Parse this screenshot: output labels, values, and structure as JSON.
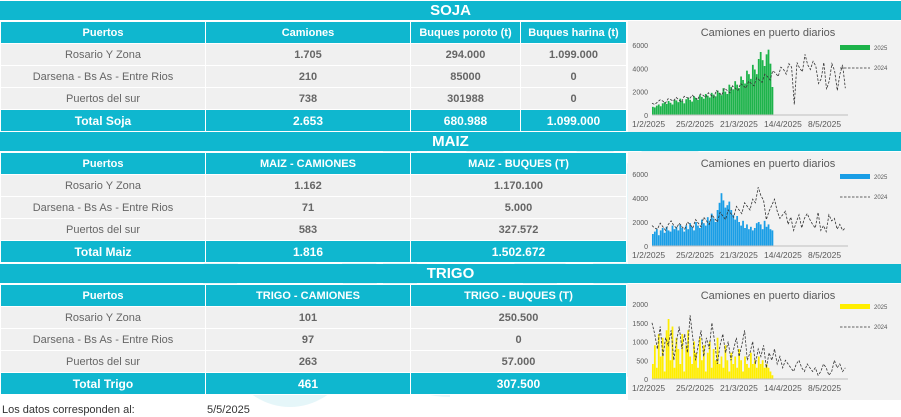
{
  "soja": {
    "title": "SOJA",
    "headers": [
      "Puertos",
      "Camiones",
      "Buques poroto (t)",
      "Buques harina (t)"
    ],
    "rows": [
      [
        "Rosario Y Zona",
        "1.705",
        "294.000",
        "1.099.000"
      ],
      [
        "Darsena - Bs As - Entre Rios",
        "210",
        "85000",
        "0"
      ],
      [
        "Puertos del sur",
        "738",
        "301988",
        "0"
      ]
    ],
    "total": [
      "Total Soja",
      "2.653",
      "680.988",
      "1.099.000"
    ]
  },
  "maiz": {
    "title": "MAIZ",
    "headers": [
      "Puertos",
      "MAIZ - CAMIONES",
      "MAIZ - BUQUES (T)"
    ],
    "rows": [
      [
        "Rosario Y Zona",
        "1.162",
        "1.170.100"
      ],
      [
        "Darsena - Bs As - Entre Rios",
        "71",
        "5.000"
      ],
      [
        "Puertos del sur",
        "583",
        "327.572"
      ]
    ],
    "total": [
      "Total Maiz",
      "1.816",
      "1.502.672"
    ]
  },
  "trigo": {
    "title": "TRIGO",
    "headers": [
      "Puertos",
      "TRIGO - CAMIONES",
      "TRIGO - BUQUES (T)"
    ],
    "rows": [
      [
        "Rosario Y Zona",
        "101",
        "250.500"
      ],
      [
        "Darsena - Bs As - Entre Rios",
        "97",
        "0"
      ],
      [
        "Puertos del sur",
        "263",
        "57.000"
      ]
    ],
    "total": [
      "Total Trigo",
      "461",
      "307.500"
    ]
  },
  "footer": {
    "label": "Los datos corresponden al:",
    "date": "5/5/2025"
  },
  "chart_data": [
    {
      "type": "bar",
      "title": "Camiones en puerto diarios",
      "color": "#1db34a",
      "ylim": [
        0,
        6000
      ],
      "yticks": [
        0,
        2000,
        4000,
        6000
      ],
      "xticks": [
        "1/2/2025",
        "25/2/2025",
        "21/3/2025",
        "14/4/2025",
        "8/5/2025"
      ],
      "series": [
        {
          "name": "2025",
          "values": [
            700,
            650,
            800,
            900,
            750,
            1000,
            1100,
            950,
            1200,
            1050,
            900,
            1300,
            1250,
            1100,
            1400,
            1200,
            1000,
            1350,
            1500,
            1300,
            1150,
            1600,
            1450,
            1300,
            1700,
            1550,
            1400,
            1800,
            1650,
            1500,
            1900,
            1750,
            1600,
            2100,
            1900,
            1700,
            2300,
            2000,
            1800,
            2600,
            2400,
            2200,
            2900,
            2600,
            2300,
            3300,
            3000,
            2700,
            3800,
            3500,
            3100,
            4300,
            3900,
            3500,
            4800,
            5400,
            4700,
            4200,
            5200,
            5600,
            4400,
            2400
          ]
        },
        {
          "name": "2024",
          "values": [
            1000,
            900,
            1100,
            1300,
            1200,
            1000,
            1400,
            1300,
            1200,
            1500,
            1300,
            1100,
            1600,
            1500,
            1400,
            1700,
            1500,
            1300,
            1800,
            1700,
            1500,
            1900,
            1700,
            1500,
            2100,
            1900,
            1700,
            2300,
            2100,
            1900,
            2500,
            2300,
            2100,
            2700,
            2500,
            2300,
            2900,
            2700,
            2500,
            3200,
            3000,
            2800,
            3500,
            3300,
            3000,
            3800,
            3600,
            3300,
            4100,
            3900,
            3500,
            4400,
            4100,
            900,
            4500,
            4000,
            3700,
            5200,
            4300,
            3900,
            4600,
            4200,
            2700,
            3100,
            4500,
            2200,
            2900,
            4400,
            3800,
            2100,
            3500,
            4300,
            2300
          ]
        }
      ]
    },
    {
      "type": "bar",
      "title": "Camiones en puerto diarios",
      "color": "#1a9ee6",
      "ylim": [
        0,
        6000
      ],
      "yticks": [
        0,
        2000,
        4000,
        6000
      ],
      "xticks": [
        "1/2/2025",
        "25/2/2025",
        "21/3/2025",
        "14/4/2025",
        "8/5/2025"
      ],
      "series": [
        {
          "name": "2025",
          "values": [
            1000,
            1200,
            1400,
            900,
            1300,
            1500,
            1100,
            1600,
            1300,
            1200,
            1700,
            1400,
            1600,
            1300,
            1800,
            1500,
            1200,
            1700,
            1400,
            1900,
            1600,
            1300,
            2000,
            1700,
            1500,
            2200,
            1900,
            1700,
            2400,
            2100,
            2700,
            2300,
            2000,
            3000,
            3600,
            4400,
            3800,
            3200,
            3400,
            3700,
            3000,
            2600,
            2200,
            2500,
            2000,
            1700,
            2100,
            1500,
            1800,
            1400,
            1600,
            1300,
            1500,
            1900,
            2000,
            1800,
            1400,
            2100,
            1600,
            1800,
            1400,
            1300
          ]
        },
        {
          "name": "2024",
          "values": [
            1700,
            1500,
            1400,
            1900,
            1600,
            1300,
            1800,
            2100,
            1700,
            1500,
            1900,
            1600,
            1400,
            2000,
            1800,
            1500,
            2200,
            1900,
            1600,
            2400,
            2100,
            1800,
            2600,
            2300,
            2000,
            2800,
            2500,
            2200,
            3000,
            2700,
            2400,
            3300,
            3000,
            2700,
            3600,
            3300,
            3000,
            3900,
            3600,
            4900,
            4200,
            3800,
            2200,
            2900,
            3400,
            3900,
            2900,
            2300,
            2600,
            2900,
            1800,
            2400,
            1300,
            2000,
            2600,
            1500,
            2300,
            2700,
            2200,
            1800,
            1500,
            2800,
            1300,
            1700,
            1200,
            2600,
            2100,
            2300,
            1400,
            1800,
            1300,
            1500
          ]
        }
      ]
    },
    {
      "type": "bar",
      "title": "Camiones en puerto diarios",
      "color": "#ffee00",
      "ylim": [
        0,
        2000
      ],
      "yticks": [
        0,
        500,
        1000,
        1500,
        2000
      ],
      "xticks": [
        "1/2/2025",
        "25/2/2025",
        "21/3/2025",
        "14/4/2025",
        "8/5/2025"
      ],
      "series": [
        {
          "name": "2025",
          "values": [
            400,
            900,
            300,
            1200,
            600,
            1100,
            200,
            1300,
            1600,
            500,
            1400,
            300,
            1100,
            800,
            400,
            1200,
            200,
            900,
            1300,
            600,
            400,
            1000,
            700,
            300,
            1100,
            500,
            900,
            200,
            700,
            1000,
            300,
            800,
            500,
            1100,
            400,
            600,
            300,
            900,
            500,
            200,
            700,
            400,
            600,
            300,
            800,
            500,
            200,
            600,
            400,
            300,
            700,
            400,
            500,
            300,
            600,
            400,
            500,
            300,
            400,
            300,
            200,
            100
          ]
        },
        {
          "name": "2024",
          "values": [
            1500,
            1200,
            800,
            1400,
            600,
            1100,
            900,
            1300,
            500,
            1000,
            1400,
            800,
            1200,
            700,
            1700,
            1100,
            500,
            900,
            1300,
            600,
            1100,
            800,
            1500,
            1000,
            400,
            900,
            1200,
            700,
            1000,
            500,
            800,
            1100,
            600,
            900,
            1300,
            500,
            700,
            1000,
            400,
            800,
            600,
            900,
            300,
            700,
            500,
            800,
            400,
            600,
            300,
            500,
            400,
            300,
            200,
            400,
            500,
            300,
            200,
            400,
            300,
            200,
            300,
            100,
            200,
            400,
            300,
            100,
            200,
            500,
            300,
            400,
            200,
            300
          ]
        }
      ]
    }
  ]
}
